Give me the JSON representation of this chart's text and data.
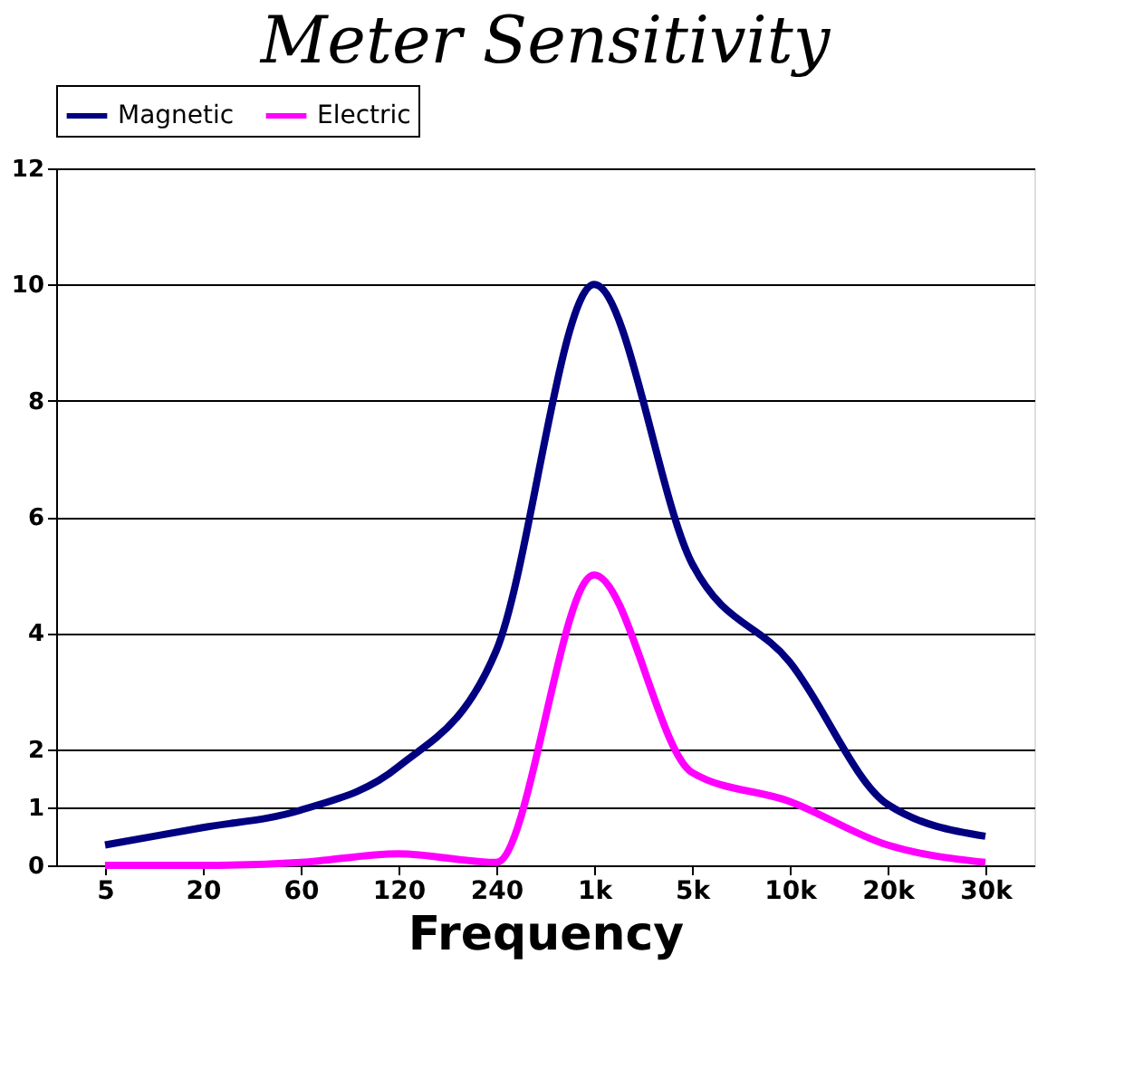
{
  "chart_data": {
    "type": "line",
    "title": "Meter Sensitivity",
    "xlabel": "Frequency",
    "categories": [
      "5",
      "20",
      "60",
      "120",
      "240",
      "1k",
      "5k",
      "10k",
      "20k",
      "30k"
    ],
    "series": [
      {
        "name": "Magnetic",
        "color": "#000080",
        "values": [
          0.35,
          0.65,
          0.95,
          1.7,
          3.7,
          10,
          5.2,
          3.5,
          1.05,
          0.5
        ]
      },
      {
        "name": "Electric",
        "color": "#ff00ff",
        "values": [
          0,
          0,
          0.05,
          0.2,
          0.05,
          5,
          1.6,
          1.1,
          0.35,
          0.05
        ]
      }
    ],
    "ylim": [
      0,
      12
    ],
    "yticks": [
      0,
      1,
      2,
      4,
      6,
      8,
      10,
      12
    ],
    "grid": "y",
    "legend": "top",
    "marker": "none",
    "line_style": "solid"
  }
}
